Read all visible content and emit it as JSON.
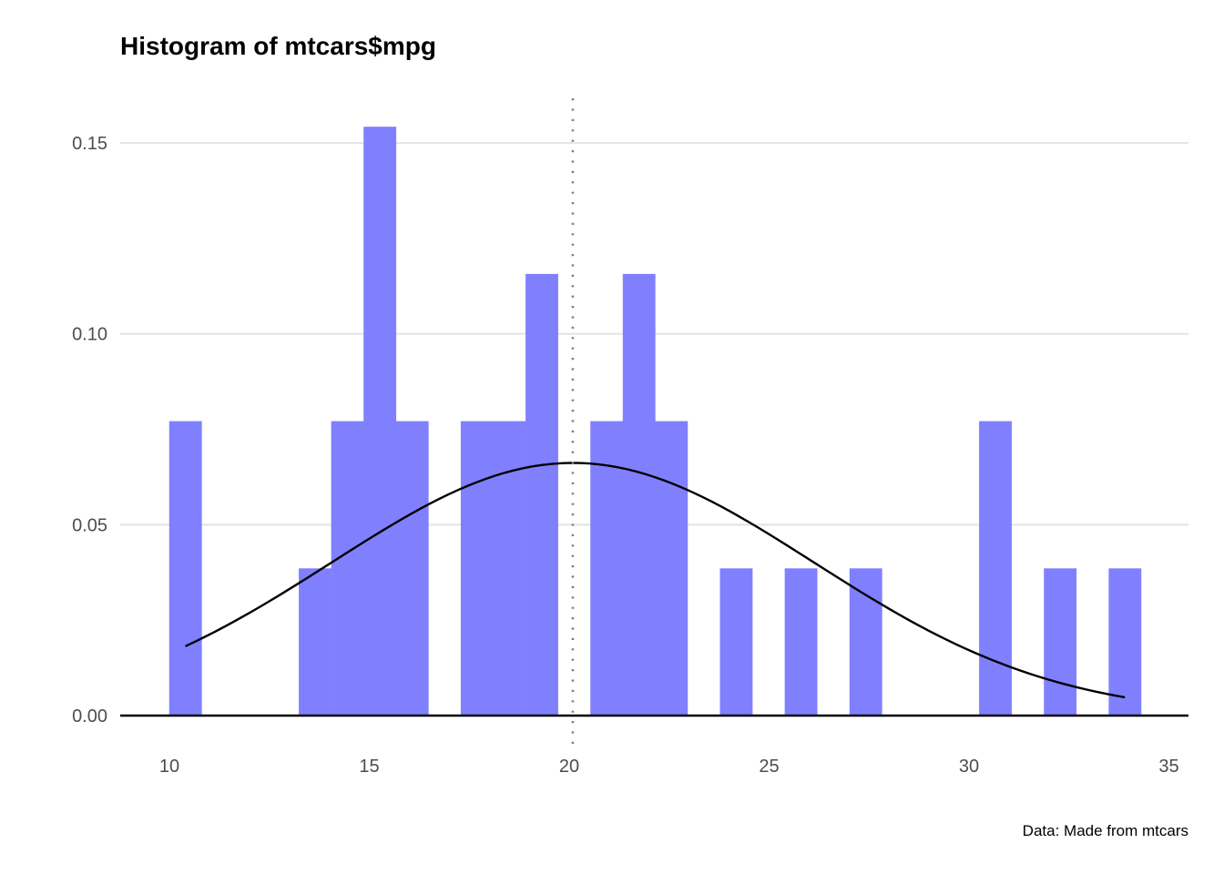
{
  "chart_data": {
    "type": "bar",
    "subtype": "histogram",
    "title": "Histogram of mtcars$mpg",
    "caption": "Data: Made from mtcars",
    "xlabel": "",
    "ylabel": "",
    "xlim": [
      8.8,
      35.5
    ],
    "ylim": [
      0,
      0.16
    ],
    "x_ticks": [
      10,
      15,
      20,
      25,
      30,
      35
    ],
    "x_tick_labels": [
      "10",
      "15",
      "20",
      "25",
      "30",
      "35"
    ],
    "y_ticks": [
      0,
      0.05,
      0.1,
      0.15
    ],
    "y_tick_labels": [
      "0.00",
      "0.05",
      "0.10",
      "0.15"
    ],
    "grid": "horizontal-major",
    "bin_start": 9.995,
    "bin_width": 0.8103,
    "bin_counts": [
      2,
      0,
      0,
      0,
      1,
      2,
      4,
      2,
      0,
      2,
      2,
      3,
      0,
      2,
      3,
      2,
      0,
      1,
      0,
      1,
      0,
      1,
      0,
      0,
      0,
      2,
      0,
      1,
      0,
      1
    ],
    "n": 32,
    "bar_color": "#8080ff",
    "mean_line": {
      "value": 20.09,
      "style": "dotted",
      "color": "#808080"
    },
    "normal_curve": {
      "mean": 20.09,
      "sd": 6.027,
      "from": 10.4,
      "to": 33.9,
      "color": "#000000"
    }
  }
}
